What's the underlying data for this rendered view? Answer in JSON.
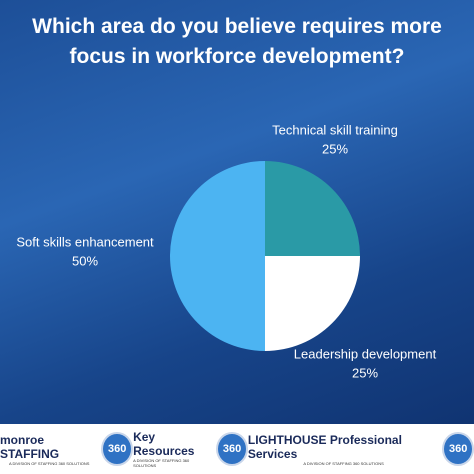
{
  "chart_data": {
    "type": "pie",
    "title": "Which area do you believe requires more focus in workforce development?",
    "categories": [
      "Technical skill training",
      "Leadership development",
      "Soft skills enhancement"
    ],
    "values": [
      25,
      25,
      50
    ],
    "value_labels": [
      "25%",
      "25%",
      "50%"
    ],
    "colors": [
      "#2a9aa6",
      "#ffffff",
      "#4cb4f2"
    ]
  },
  "footer": {
    "logos": [
      {
        "name": "monroe STAFFING",
        "tagline": "A DIVISION OF STAFFING 360 SOLUTIONS",
        "badge": "360"
      },
      {
        "name": "Key Resources",
        "tagline": "A DIVISION OF STAFFING 360 SOLUTIONS",
        "badge": "360"
      },
      {
        "name": "LIGHTHOUSE Professional Services",
        "tagline": "A DIVISION OF STAFFING 360 SOLUTIONS",
        "badge": "360"
      }
    ]
  }
}
